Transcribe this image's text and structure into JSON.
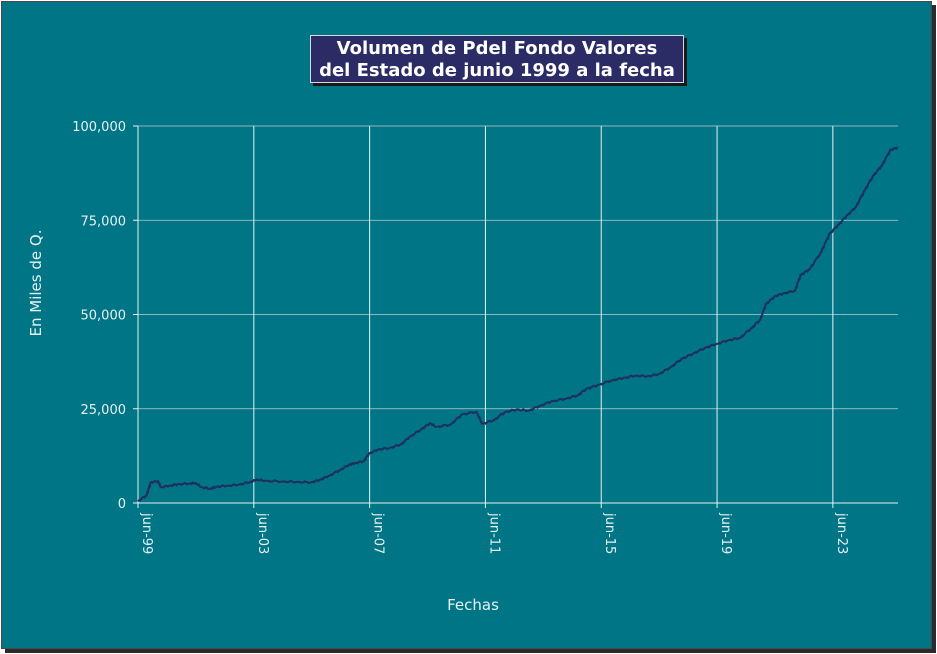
{
  "chart_data": {
    "type": "line",
    "title_line1": "Volumen de PdeI Fondo Valores",
    "title_line2": "del Estado de junio 1999 a la fecha",
    "xlabel": "Fechas",
    "ylabel": "En Miles de Q.",
    "ylim": [
      0,
      100000
    ],
    "y_ticks": [
      {
        "value": 0,
        "label": "0"
      },
      {
        "value": 25000,
        "label": "25,000"
      },
      {
        "value": 50000,
        "label": "50,000"
      },
      {
        "value": 75000,
        "label": "75,000"
      },
      {
        "value": 100000,
        "label": "100,000"
      }
    ],
    "x_ticks": [
      {
        "value": 1999.5,
        "label": "jun-99"
      },
      {
        "value": 2003.5,
        "label": "jun-03"
      },
      {
        "value": 2007.5,
        "label": "jun-07"
      },
      {
        "value": 2011.5,
        "label": "jun-11"
      },
      {
        "value": 2015.5,
        "label": "jun-15"
      },
      {
        "value": 2019.5,
        "label": "jun-19"
      },
      {
        "value": 2023.5,
        "label": "jun-23"
      }
    ],
    "xlim": [
      1999.5,
      2025.75
    ],
    "grid": true,
    "line_color": "#1f2f5e",
    "series": [
      {
        "values": [
          [
            1999.5,
            500
          ],
          [
            1999.8,
            2000
          ],
          [
            1999.95,
            5500
          ],
          [
            2000.2,
            5800
          ],
          [
            2000.3,
            4200
          ],
          [
            2000.6,
            4600
          ],
          [
            2000.9,
            5000
          ],
          [
            2001.3,
            5200
          ],
          [
            2001.5,
            5300
          ],
          [
            2001.7,
            4200
          ],
          [
            2002.0,
            3800
          ],
          [
            2002.2,
            4300
          ],
          [
            2002.6,
            4600
          ],
          [
            2003.0,
            4900
          ],
          [
            2003.4,
            5600
          ],
          [
            2003.6,
            6200
          ],
          [
            2003.9,
            5900
          ],
          [
            2004.5,
            5700
          ],
          [
            2005.0,
            5600
          ],
          [
            2005.5,
            5500
          ],
          [
            2005.8,
            6200
          ],
          [
            2006.1,
            7200
          ],
          [
            2006.5,
            8800
          ],
          [
            2006.8,
            10200
          ],
          [
            2007.0,
            10600
          ],
          [
            2007.3,
            11100
          ],
          [
            2007.5,
            13200
          ],
          [
            2007.8,
            14200
          ],
          [
            2008.2,
            14600
          ],
          [
            2008.6,
            15600
          ],
          [
            2008.9,
            17600
          ],
          [
            2009.3,
            19600
          ],
          [
            2009.6,
            21200
          ],
          [
            2009.8,
            20200
          ],
          [
            2010.3,
            20800
          ],
          [
            2010.7,
            23500
          ],
          [
            2011.2,
            24200
          ],
          [
            2011.4,
            21000
          ],
          [
            2011.8,
            22000
          ],
          [
            2012.2,
            24200
          ],
          [
            2012.6,
            24800
          ],
          [
            2013.0,
            24500
          ],
          [
            2013.4,
            25800
          ],
          [
            2013.8,
            27000
          ],
          [
            2014.3,
            27700
          ],
          [
            2014.7,
            28600
          ],
          [
            2015.0,
            30300
          ],
          [
            2015.4,
            31300
          ],
          [
            2015.9,
            32600
          ],
          [
            2016.3,
            33200
          ],
          [
            2016.7,
            33800
          ],
          [
            2017.1,
            33600
          ],
          [
            2017.5,
            34200
          ],
          [
            2017.9,
            36000
          ],
          [
            2018.3,
            38300
          ],
          [
            2018.7,
            39700
          ],
          [
            2019.1,
            41200
          ],
          [
            2019.5,
            42200
          ],
          [
            2019.9,
            43200
          ],
          [
            2020.3,
            43800
          ],
          [
            2020.7,
            46400
          ],
          [
            2021.0,
            48600
          ],
          [
            2021.2,
            52800
          ],
          [
            2021.5,
            54800
          ],
          [
            2021.8,
            55600
          ],
          [
            2022.2,
            56300
          ],
          [
            2022.4,
            60500
          ],
          [
            2022.7,
            62000
          ],
          [
            2023.1,
            66500
          ],
          [
            2023.4,
            71500
          ],
          [
            2023.7,
            73800
          ],
          [
            2024.0,
            76300
          ],
          [
            2024.3,
            78500
          ],
          [
            2024.6,
            82800
          ],
          [
            2024.9,
            86800
          ],
          [
            2025.2,
            89500
          ],
          [
            2025.5,
            93700
          ],
          [
            2025.75,
            94300
          ]
        ]
      }
    ]
  }
}
